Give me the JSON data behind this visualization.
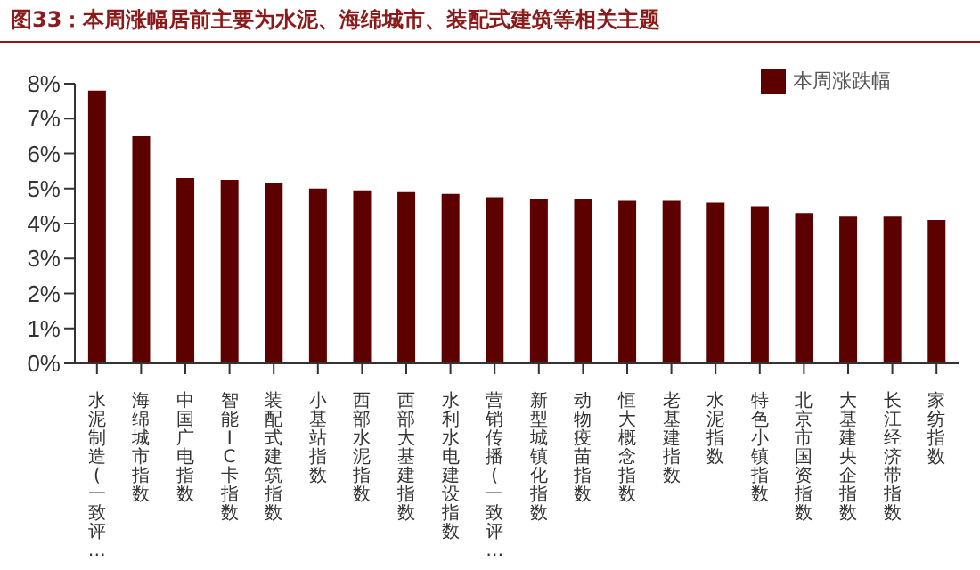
{
  "chart_data": {
    "type": "bar",
    "title": "图33：本周涨幅居前主要为水泥、海绵城市、装配式建筑等相关主题",
    "categories": [
      "水泥制造(一致评…",
      "海绵城市指数",
      "中国广电指数",
      "智能IC卡指数",
      "装配式建筑指数",
      "小基站指数",
      "西部水泥指数",
      "西部大基建指数",
      "水利水电建设指数",
      "营销传播(一致评…",
      "新型城镇化指数",
      "动物疫苗指数",
      "恒大概念指数",
      "老基建指数",
      "水泥指数",
      "特色小镇指数",
      "北京市国资指数",
      "大基建央企指数",
      "长江经济带指数",
      "家纺指数"
    ],
    "series": [
      {
        "name": "本周涨跌幅",
        "color": "#5c0000",
        "values": [
          7.8,
          6.5,
          5.3,
          5.25,
          5.15,
          5.0,
          4.95,
          4.9,
          4.85,
          4.75,
          4.7,
          4.7,
          4.65,
          4.65,
          4.6,
          4.5,
          4.3,
          4.2,
          4.2,
          4.1
        ]
      }
    ],
    "ylim": [
      0,
      8
    ],
    "yticks": [
      {
        "value": 0,
        "label": "0%"
      },
      {
        "value": 1,
        "label": "1%"
      },
      {
        "value": 2,
        "label": "2%"
      },
      {
        "value": 3,
        "label": "3%"
      },
      {
        "value": 4,
        "label": "4%"
      },
      {
        "value": 5,
        "label": "5%"
      },
      {
        "value": 6,
        "label": "6%"
      },
      {
        "value": 7,
        "label": "7%"
      },
      {
        "value": 8,
        "label": "8%"
      }
    ],
    "legend": "top right",
    "grid": false
  }
}
